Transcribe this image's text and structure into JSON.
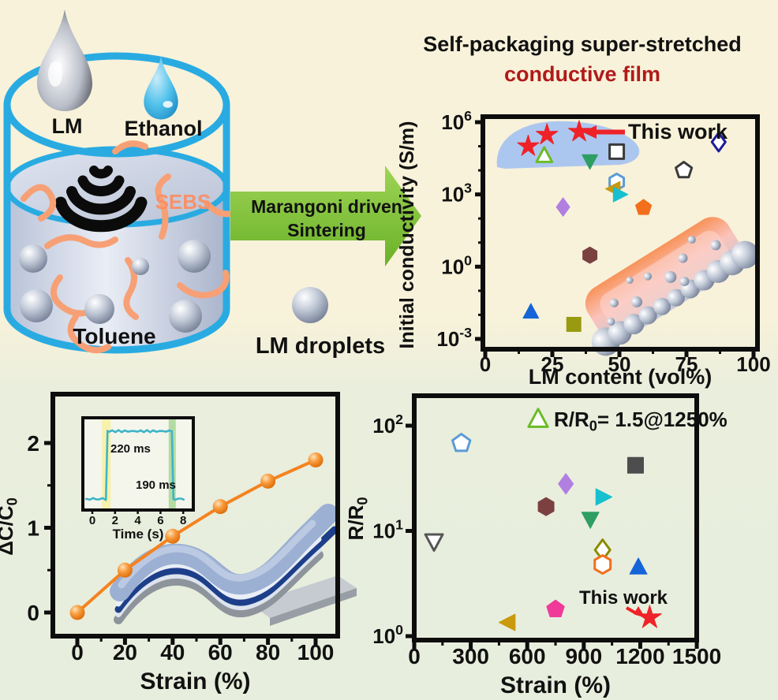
{
  "header": {
    "title_line1": "Self-packaging super-stretched",
    "title_line2": "conductive film",
    "title_line1_color": "#111111",
    "title_line2_color": "#b11a1a"
  },
  "illustration": {
    "lm_label": "LM",
    "ethanol_label": "Ethanol",
    "sebs_label": "SEBS",
    "toluene_label": "Toluene",
    "lm_droplets_label": "LM droplets",
    "beaker_outline_color": "#29abe2",
    "sebs_color": "#f7916a"
  },
  "process_arrow": {
    "line1": "Marangoni driven",
    "line2": "Sintering",
    "arrow_color": "#7cc033"
  },
  "chart_data": [
    {
      "id": "initial-conductivity-vs-lm-content",
      "type": "scatter",
      "xlabel": "LM content (vol%)",
      "ylabel": "Initial conductivity (S/m)",
      "x_ticks": [
        0,
        25,
        50,
        75,
        100
      ],
      "xlim": [
        0,
        100
      ],
      "y_scale": "log",
      "y_tick_exponents": [
        6,
        3,
        0,
        -3
      ],
      "ylim": [
        0.001,
        1000000
      ],
      "annotation": {
        "text": "This work",
        "color": "#ee2228"
      },
      "highlight_region_color": "#9fc0f2",
      "points": [
        {
          "name": "this-work-star-1",
          "shape": "star",
          "color": "#ee2228",
          "open": false,
          "x": 16,
          "y": 100000.0
        },
        {
          "name": "this-work-star-2",
          "shape": "star",
          "color": "#ee2228",
          "open": false,
          "x": 23,
          "y": 300000.0
        },
        {
          "name": "this-work-star-3",
          "shape": "star",
          "color": "#ee2228",
          "open": false,
          "x": 35,
          "y": 400000.0
        },
        {
          "name": "open-green-triangle",
          "shape": "triangle-up",
          "color": "#6cbb27",
          "open": true,
          "x": 22,
          "y": 40000.0
        },
        {
          "name": "open-black-square",
          "shape": "square",
          "color": "#3a3a3a",
          "open": true,
          "x": 49,
          "y": 60000.0
        },
        {
          "name": "open-navy-diamond",
          "shape": "diamond",
          "color": "#1c1c9c",
          "open": true,
          "x": 87,
          "y": 150000.0
        },
        {
          "name": "green-down-triangle",
          "shape": "triangle-down",
          "color": "#2f9e63",
          "open": false,
          "x": 39,
          "y": 25000.0
        },
        {
          "name": "open-black-pentagon",
          "shape": "pentagon",
          "color": "#3a3a3a",
          "open": true,
          "x": 74,
          "y": 10000.0
        },
        {
          "name": "open-blue-hexagon",
          "shape": "hexagon",
          "color": "#5b9bd5",
          "open": true,
          "x": 49,
          "y": 3300
        },
        {
          "name": "gold-left-triangle",
          "shape": "triangle-left",
          "color": "#c9990e",
          "open": false,
          "x": 48,
          "y": 1700
        },
        {
          "name": "cyan-right-triangle",
          "shape": "triangle-right",
          "color": "#17c0cf",
          "open": false,
          "x": 50,
          "y": 1000
        },
        {
          "name": "purple-diamond",
          "shape": "diamond",
          "color": "#b07fe0",
          "open": false,
          "x": 29,
          "y": 300
        },
        {
          "name": "orange-pentagon",
          "shape": "pentagon",
          "color": "#f26f1c",
          "open": false,
          "x": 59,
          "y": 280
        },
        {
          "name": "brown-hexagon",
          "shape": "hexagon",
          "color": "#7b4040",
          "open": false,
          "x": 39,
          "y": 3
        },
        {
          "name": "blue-triangle",
          "shape": "triangle-up",
          "color": "#1565d8",
          "open": false,
          "x": 17,
          "y": 0.013
        },
        {
          "name": "olive-square",
          "shape": "square",
          "color": "#9a9a10",
          "open": false,
          "x": 33,
          "y": 0.004
        }
      ]
    },
    {
      "id": "capacitance-vs-strain",
      "type": "line",
      "xlabel": "Strain (%)",
      "ylabel_parts": {
        "pre": "ΔC/C",
        "sub": "0"
      },
      "x": [
        0,
        20,
        40,
        60,
        80,
        100
      ],
      "values": [
        0,
        0.5,
        0.9,
        1.25,
        1.55,
        1.8
      ],
      "line_color": "#f5821f",
      "x_ticks": [
        0,
        20,
        40,
        60,
        80,
        100
      ],
      "y_ticks": [
        0,
        1,
        2
      ],
      "ylim": [
        -0.2,
        2.3
      ],
      "inset": {
        "xlabel": "Time (s)",
        "x_ticks": [
          0,
          2,
          4,
          6,
          8
        ],
        "rise_label": "220 ms",
        "fall_label": "190 ms",
        "line_color": "#3fb4c8",
        "pulse_on_s": 1.2,
        "pulse_off_s": 7.0,
        "t_range": [
          0,
          8.3
        ]
      }
    },
    {
      "id": "resistance-ratio-vs-strain",
      "type": "scatter",
      "xlabel": "Strain (%)",
      "ylabel_parts": {
        "pre": "R/R",
        "sub": "0"
      },
      "x_ticks": [
        0,
        300,
        600,
        900,
        1200,
        1500
      ],
      "xlim": [
        0,
        1500
      ],
      "y_scale": "log",
      "y_tick_exponents": [
        0,
        1,
        2
      ],
      "ylim": [
        1,
        100
      ],
      "legend": {
        "marker_shape": "triangle-up",
        "marker_color": "#6cbb27",
        "marker_open": true,
        "text_parts": {
          "pre": "R/R",
          "sub": "0",
          "post": "= 1.5@1250%"
        }
      },
      "annotation": {
        "text": "This work",
        "color": "#ee2228"
      },
      "points": [
        {
          "name": "open-blue-pentagon",
          "shape": "pentagon",
          "color": "#5b9bd5",
          "open": true,
          "x": 250,
          "y": 68
        },
        {
          "name": "dark-gray-square",
          "shape": "square",
          "color": "#4d4d4d",
          "open": false,
          "x": 1175,
          "y": 42
        },
        {
          "name": "purple-diamond",
          "shape": "diamond",
          "color": "#b07fe0",
          "open": false,
          "x": 805,
          "y": 28
        },
        {
          "name": "cyan-right-triangle",
          "shape": "triangle-right",
          "color": "#17c0cf",
          "open": false,
          "x": 1000,
          "y": 21
        },
        {
          "name": "brown-hexagon",
          "shape": "hexagon",
          "color": "#7b4040",
          "open": false,
          "x": 700,
          "y": 17
        },
        {
          "name": "green-down-triangle",
          "shape": "triangle-down",
          "color": "#2f9e63",
          "open": false,
          "x": 935,
          "y": 13
        },
        {
          "name": "open-gray-down-triangle",
          "shape": "triangle-down",
          "color": "#555555",
          "open": true,
          "x": 105,
          "y": 8
        },
        {
          "name": "open-olive-diamond",
          "shape": "diamond",
          "color": "#8b8b00",
          "open": true,
          "x": 1000,
          "y": 6.6
        },
        {
          "name": "open-orange-hexagon",
          "shape": "hexagon",
          "color": "#f26f1c",
          "open": true,
          "x": 1000,
          "y": 4.8
        },
        {
          "name": "blue-triangle",
          "shape": "triangle-up",
          "color": "#1565d8",
          "open": false,
          "x": 1190,
          "y": 4.5
        },
        {
          "name": "pink-pentagon",
          "shape": "pentagon",
          "color": "#f03a9a",
          "open": false,
          "x": 750,
          "y": 1.8
        },
        {
          "name": "gold-left-triangle",
          "shape": "triangle-left",
          "color": "#c9990e",
          "open": false,
          "x": 500,
          "y": 1.35
        },
        {
          "name": "this-work-star",
          "shape": "star",
          "color": "#ee2228",
          "open": false,
          "x": 1250,
          "y": 1.5
        }
      ]
    }
  ]
}
